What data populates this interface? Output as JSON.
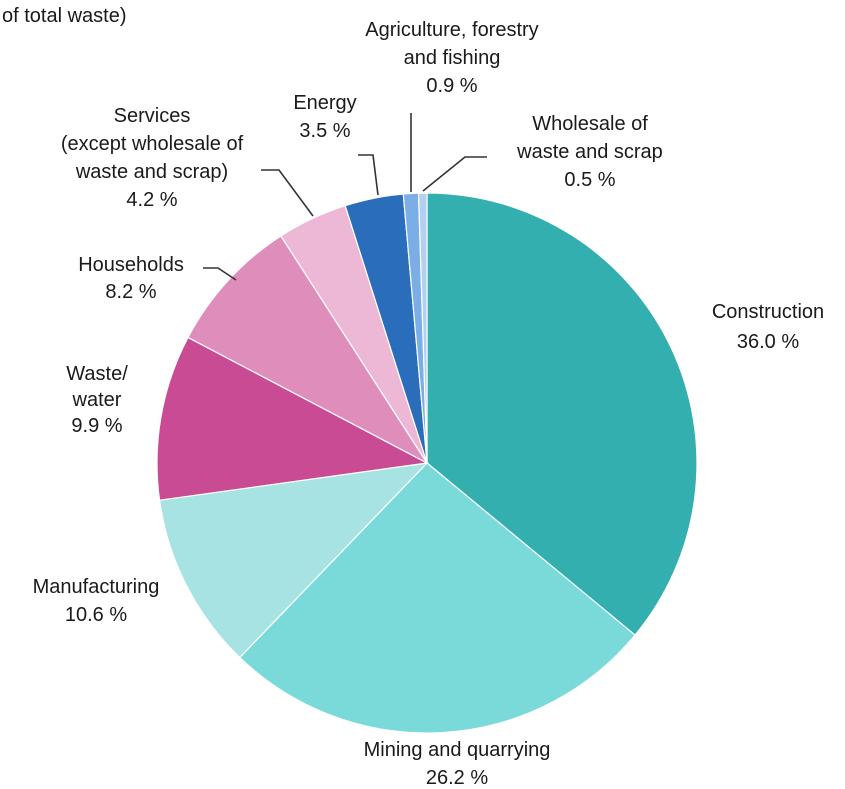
{
  "chart_data": {
    "type": "pie",
    "title_fragment": "of total waste)",
    "start_angle_deg": 0,
    "direction": "clockwise",
    "slices": [
      {
        "name": "Construction",
        "label_lines": [
          "Construction"
        ],
        "value": 36.0,
        "value_text": "36.0 %",
        "color": "#33AFB0"
      },
      {
        "name": "Mining and quarrying",
        "label_lines": [
          "Mining and quarrying"
        ],
        "value": 26.2,
        "value_text": "26.2 %",
        "color": "#7ADADA"
      },
      {
        "name": "Manufacturing",
        "label_lines": [
          "Manufacturing"
        ],
        "value": 10.6,
        "value_text": "10.6 %",
        "color": "#A8E3E3"
      },
      {
        "name": "Waste/ water",
        "label_lines": [
          "Waste/",
          "water"
        ],
        "value": 9.9,
        "value_text": "9.9 %",
        "color": "#C84B93"
      },
      {
        "name": "Households",
        "label_lines": [
          "Households"
        ],
        "value": 8.2,
        "value_text": "8.2 %",
        "color": "#DF8EBC"
      },
      {
        "name": "Services (except wholesale of waste and scrap)",
        "label_lines": [
          "Services",
          "(except wholesale of",
          "waste and scrap)"
        ],
        "value": 4.2,
        "value_text": "4.2 %",
        "color": "#EDB8D5"
      },
      {
        "name": "Energy",
        "label_lines": [
          "Energy"
        ],
        "value": 3.5,
        "value_text": "3.5 %",
        "color": "#2A6EBB"
      },
      {
        "name": "Agriculture, forestry and fishing",
        "label_lines": [
          "Agriculture, forestry",
          "and fishing"
        ],
        "value": 0.9,
        "value_text": "0.9 %",
        "color": "#7AAEE4"
      },
      {
        "name": "Wholesale of waste and scrap",
        "label_lines": [
          "Wholesale of",
          "waste and scrap"
        ],
        "value": 0.5,
        "value_text": "0.5 %",
        "color": "#B3D0EF"
      }
    ]
  }
}
